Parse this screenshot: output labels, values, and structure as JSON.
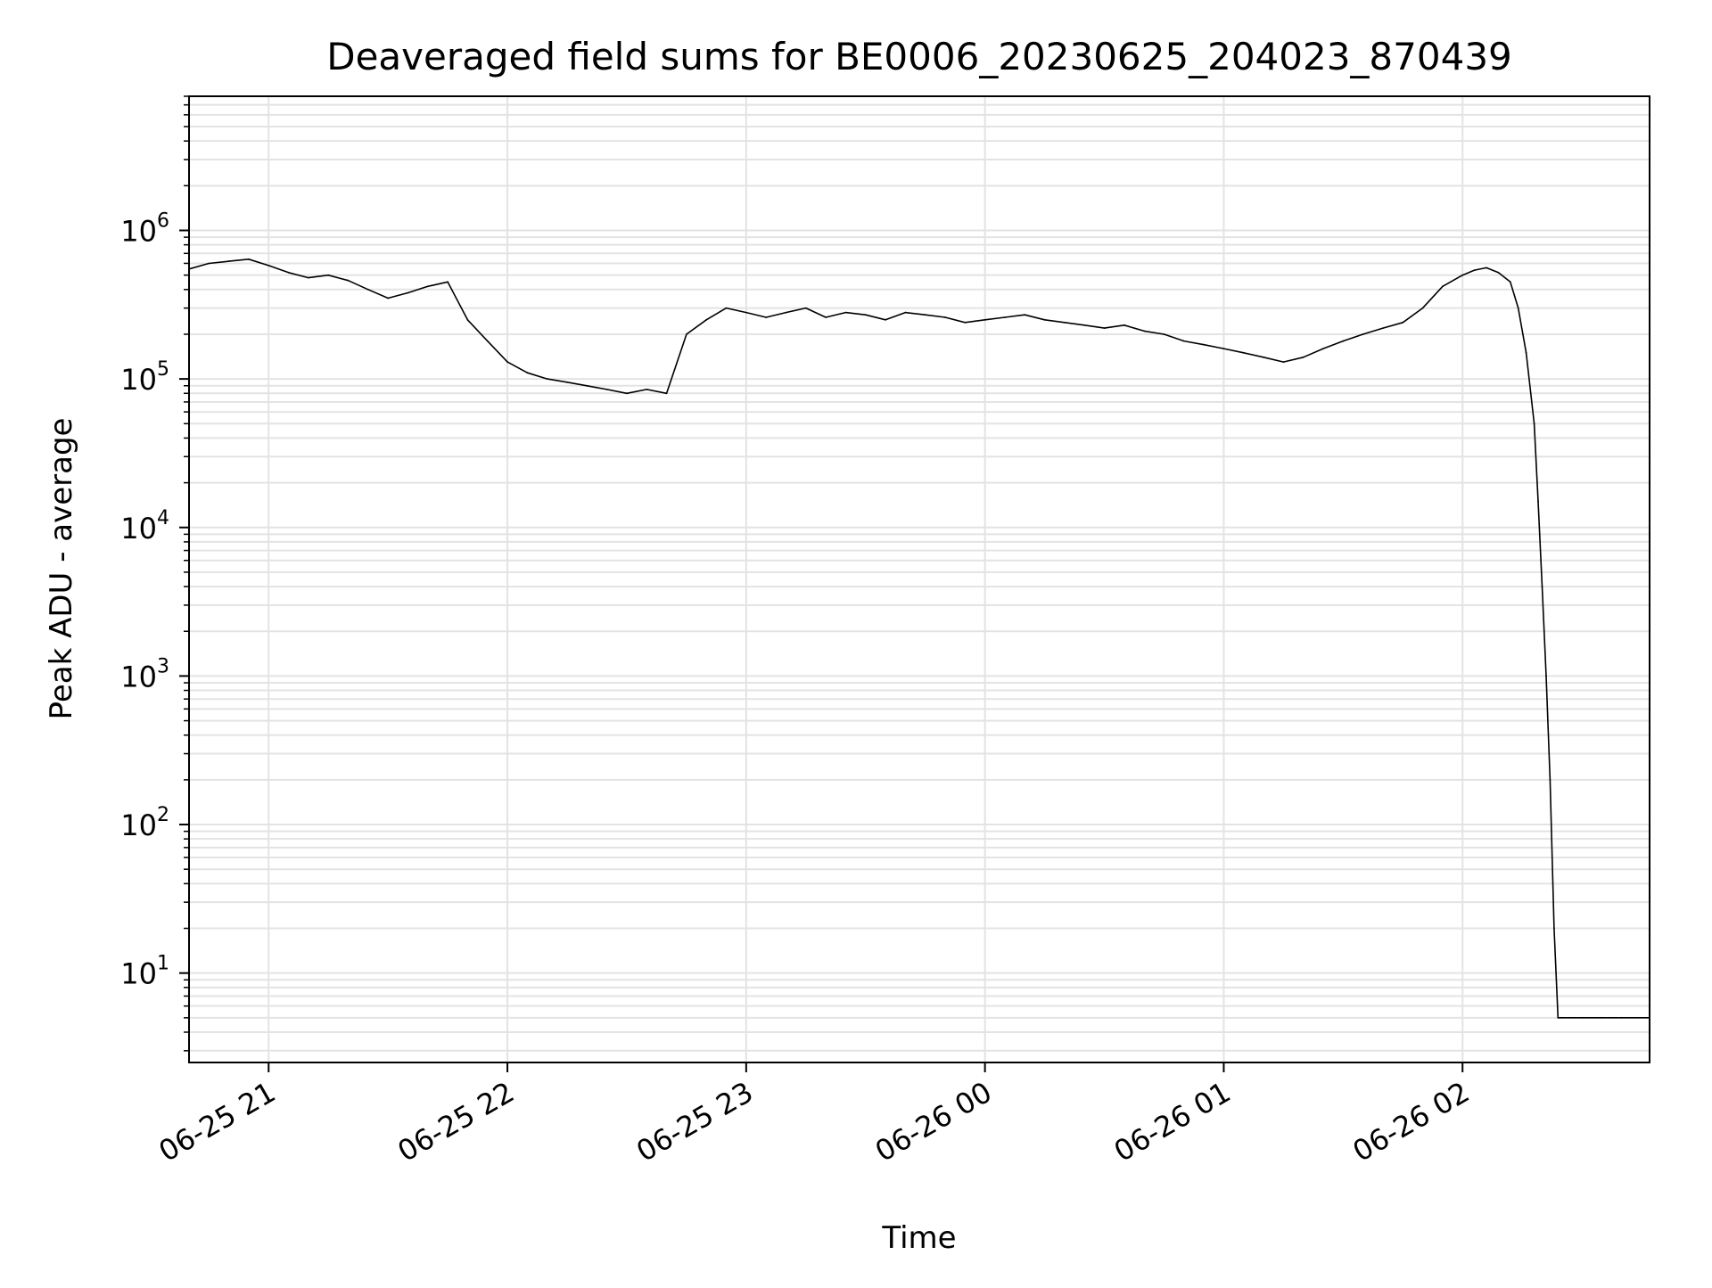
{
  "chart_data": {
    "type": "line",
    "title": "Deaveraged field sums for BE0006_20230625_204023_870439",
    "xlabel": "Time",
    "ylabel": "Peak ADU - average",
    "yscale": "log",
    "xlim": [
      "2023-06-25 20:40",
      "2023-06-26 02:47"
    ],
    "ylim": [
      2.5,
      8000000
    ],
    "grid": true,
    "legend": "none",
    "line_color": "#000000",
    "x_ticks": [
      {
        "value": "2023-06-25 21:00",
        "label": "06-25 21"
      },
      {
        "value": "2023-06-25 22:00",
        "label": "06-25 22"
      },
      {
        "value": "2023-06-25 23:00",
        "label": "06-25 23"
      },
      {
        "value": "2023-06-26 00:00",
        "label": "06-26 00"
      },
      {
        "value": "2023-06-26 01:00",
        "label": "06-26 01"
      },
      {
        "value": "2023-06-26 02:00",
        "label": "06-26 02"
      }
    ],
    "y_ticks": [
      {
        "value": 10,
        "base": "10",
        "exp": "1"
      },
      {
        "value": 100,
        "base": "10",
        "exp": "2"
      },
      {
        "value": 1000,
        "base": "10",
        "exp": "3"
      },
      {
        "value": 10000,
        "base": "10",
        "exp": "4"
      },
      {
        "value": 100000,
        "base": "10",
        "exp": "5"
      },
      {
        "value": 1000000,
        "base": "10",
        "exp": "6"
      }
    ],
    "series": [
      {
        "x": [
          "2023-06-25 20:40",
          "2023-06-25 20:45",
          "2023-06-25 20:50",
          "2023-06-25 20:55",
          "2023-06-25 21:00",
          "2023-06-25 21:05",
          "2023-06-25 21:10",
          "2023-06-25 21:15",
          "2023-06-25 21:20",
          "2023-06-25 21:25",
          "2023-06-25 21:30",
          "2023-06-25 21:35",
          "2023-06-25 21:40",
          "2023-06-25 21:45",
          "2023-06-25 21:50",
          "2023-06-25 21:55",
          "2023-06-25 22:00",
          "2023-06-25 22:05",
          "2023-06-25 22:10",
          "2023-06-25 22:15",
          "2023-06-25 22:20",
          "2023-06-25 22:25",
          "2023-06-25 22:30",
          "2023-06-25 22:35",
          "2023-06-25 22:40",
          "2023-06-25 22:45",
          "2023-06-25 22:50",
          "2023-06-25 22:55",
          "2023-06-25 23:00",
          "2023-06-25 23:05",
          "2023-06-25 23:10",
          "2023-06-25 23:15",
          "2023-06-25 23:20",
          "2023-06-25 23:25",
          "2023-06-25 23:30",
          "2023-06-25 23:35",
          "2023-06-25 23:40",
          "2023-06-25 23:45",
          "2023-06-25 23:50",
          "2023-06-25 23:55",
          "2023-06-26 00:00",
          "2023-06-26 00:05",
          "2023-06-26 00:10",
          "2023-06-26 00:15",
          "2023-06-26 00:20",
          "2023-06-26 00:25",
          "2023-06-26 00:30",
          "2023-06-26 00:35",
          "2023-06-26 00:40",
          "2023-06-26 00:45",
          "2023-06-26 00:50",
          "2023-06-26 00:55",
          "2023-06-26 01:00",
          "2023-06-26 01:05",
          "2023-06-26 01:10",
          "2023-06-26 01:15",
          "2023-06-26 01:20",
          "2023-06-26 01:25",
          "2023-06-26 01:30",
          "2023-06-26 01:35",
          "2023-06-26 01:40",
          "2023-06-26 01:45",
          "2023-06-26 01:50",
          "2023-06-26 01:55",
          "2023-06-26 02:00",
          "2023-06-26 02:03",
          "2023-06-26 02:06",
          "2023-06-26 02:09",
          "2023-06-26 02:12",
          "2023-06-26 02:14",
          "2023-06-26 02:16",
          "2023-06-26 02:18",
          "2023-06-26 02:19",
          "2023-06-26 02:20",
          "2023-06-26 02:21",
          "2023-06-26 02:22",
          "2023-06-26 02:23",
          "2023-06-26 02:24",
          "2023-06-26 02:25",
          "2023-06-26 02:30",
          "2023-06-26 02:35",
          "2023-06-26 02:40",
          "2023-06-26 02:47"
        ],
        "values": [
          550000,
          600000,
          620000,
          640000,
          580000,
          520000,
          480000,
          500000,
          460000,
          400000,
          350000,
          380000,
          420000,
          450000,
          250000,
          180000,
          130000,
          110000,
          100000,
          95000,
          90000,
          85000,
          80000,
          85000,
          80000,
          200000,
          250000,
          300000,
          280000,
          260000,
          280000,
          300000,
          260000,
          280000,
          270000,
          250000,
          280000,
          270000,
          260000,
          240000,
          250000,
          260000,
          270000,
          250000,
          240000,
          230000,
          220000,
          230000,
          210000,
          200000,
          180000,
          170000,
          160000,
          150000,
          140000,
          130000,
          140000,
          160000,
          180000,
          200000,
          220000,
          240000,
          300000,
          420000,
          500000,
          540000,
          560000,
          520000,
          450000,
          300000,
          150000,
          50000,
          15000,
          4000,
          1000,
          200,
          20,
          5,
          5,
          5,
          5,
          5,
          5
        ]
      }
    ]
  }
}
